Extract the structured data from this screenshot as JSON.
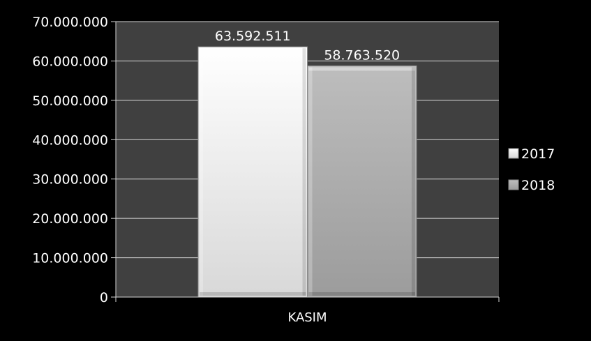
{
  "chart_data": {
    "type": "bar",
    "categories": [
      "KASIM"
    ],
    "series": [
      {
        "name": "2017",
        "values": [
          63592511
        ],
        "label": "63.592.511",
        "color": "#f4f4f4"
      },
      {
        "name": "2018",
        "values": [
          58763520
        ],
        "label": "58.763.520",
        "color": "#aaaaaa"
      }
    ],
    "ylim": [
      0,
      70000000
    ],
    "yticks": [
      {
        "value": 0,
        "label": "0"
      },
      {
        "value": 10000000,
        "label": "10.000.000"
      },
      {
        "value": 20000000,
        "label": "20.000.000"
      },
      {
        "value": 30000000,
        "label": "30.000.000"
      },
      {
        "value": 40000000,
        "label": "40.000.000"
      },
      {
        "value": 50000000,
        "label": "50.000.000"
      },
      {
        "value": 60000000,
        "label": "60.000.000"
      },
      {
        "value": 70000000,
        "label": "70.000.000"
      }
    ],
    "title": "",
    "xlabel": "",
    "ylabel": "",
    "grid": true,
    "legend_position": "right",
    "plot_background": "#404040",
    "page_background": "#000000"
  }
}
